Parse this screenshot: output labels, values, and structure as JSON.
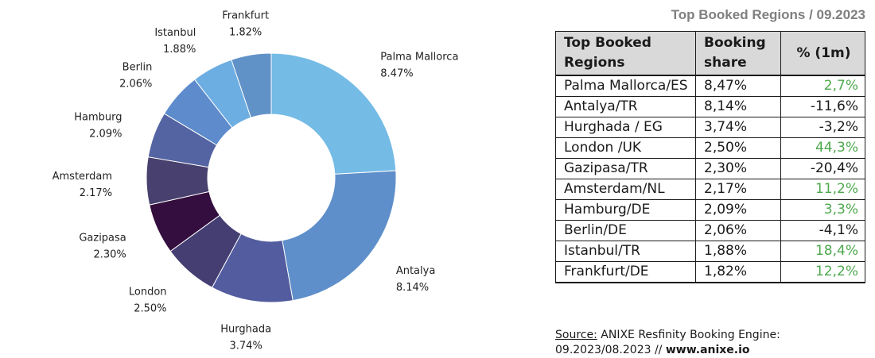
{
  "chart_data": {
    "type": "pie",
    "title": "",
    "slices": [
      {
        "name": "Palma Mallorca",
        "value": 8.47,
        "label": "8.47%",
        "color": "#74bbe6"
      },
      {
        "name": "Antalya",
        "value": 8.14,
        "label": "8.14%",
        "color": "#5f8fca"
      },
      {
        "name": "Hurghada",
        "value": 3.74,
        "label": "3.74%",
        "color": "#525c9e"
      },
      {
        "name": "London",
        "value": 2.5,
        "label": "2.50%",
        "color": "#443e72"
      },
      {
        "name": "Gazipasa",
        "value": 2.3,
        "label": "2.30%",
        "color": "#340e3e"
      },
      {
        "name": "Amsterdam",
        "value": 2.17,
        "label": "2.17%",
        "color": "#48406e"
      },
      {
        "name": "Hamburg",
        "value": 2.09,
        "label": "2.09%",
        "color": "#5464a2"
      },
      {
        "name": "Berlin",
        "value": 2.06,
        "label": "2.06%",
        "color": "#5d8bcb"
      },
      {
        "name": "Istanbul",
        "value": 1.88,
        "label": "1.88%",
        "color": "#6daee2"
      },
      {
        "name": "Frankfurt",
        "value": 1.82,
        "label": "1.82%",
        "color": "#6092c8"
      }
    ]
  },
  "table": {
    "title": "Top Booked Regions / 09.2023",
    "headers": [
      "Top Booked Regions",
      "Booking share",
      "% (1m)"
    ],
    "rows": [
      {
        "region": "Palma Mallorca/ES",
        "share": "8,47%",
        "change": "2,7%",
        "positive": true
      },
      {
        "region": "Antalya/TR",
        "share": "8,14%",
        "change": "-11,6%",
        "positive": false
      },
      {
        "region": "Hurghada / EG",
        "share": "3,74%",
        "change": "-3,2%",
        "positive": false
      },
      {
        "region": "London /UK",
        "share": "2,50%",
        "change": "44,3%",
        "positive": true
      },
      {
        "region": "Gazipasa/TR",
        "share": "2,30%",
        "change": "-20,4%",
        "positive": false
      },
      {
        "region": "Amsterdam/NL",
        "share": "2,17%",
        "change": "11,2%",
        "positive": true
      },
      {
        "region": "Hamburg/DE",
        "share": "2,09%",
        "change": "3,3%",
        "positive": true
      },
      {
        "region": "Berlin/DE",
        "share": "2,06%",
        "change": "-4,1%",
        "positive": false
      },
      {
        "region": "Istanbul/TR",
        "share": "1,88%",
        "change": "18,4%",
        "positive": true
      },
      {
        "region": "Frankfurt/DE",
        "share": "1,82%",
        "change": "12,2%",
        "positive": true
      }
    ]
  },
  "source": {
    "label": "Source:",
    "text": " ANIXE Resfinity Booking Engine:",
    "line2": "09.2023/08.2023 // ",
    "url": "www.anixe.io"
  }
}
